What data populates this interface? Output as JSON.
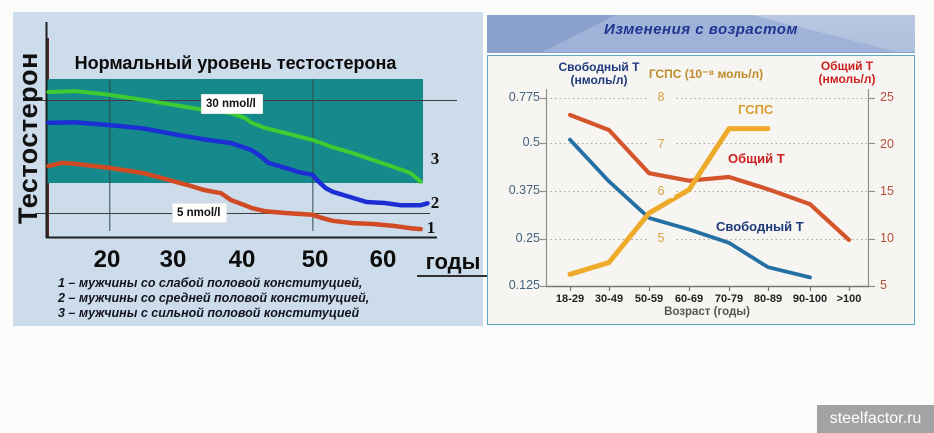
{
  "page": {
    "watermark": "steelfactor.ru"
  },
  "chart_data": [
    {
      "type": "line",
      "title": "Нормальный уровень тестостерона",
      "y_axis_label": "Тестостерон",
      "x_axis_label": "годы",
      "x_ticks": [
        "20",
        "30",
        "40",
        "50",
        "60"
      ],
      "xlim": [
        11,
        67
      ],
      "reference_lines": [
        {
          "label": "30 nmol/l",
          "value": 30
        },
        {
          "label": "5 nmol/l",
          "value": 5
        }
      ],
      "band": {
        "color": "#15898b",
        "from_nmol": 11.5,
        "to_nmol": 34
      },
      "grid_vertical_at_years": [
        20,
        50
      ],
      "series": [
        {
          "id": "strong",
          "end_label": "3",
          "color": "#3fcc33",
          "width": 4,
          "points": [
            [
              11,
              31.3
            ],
            [
              15,
              31.5
            ],
            [
              20,
              30.7
            ],
            [
              25,
              29.6
            ],
            [
              29.5,
              28.5
            ],
            [
              34,
              27.4
            ],
            [
              38,
              26.7
            ],
            [
              40,
              25.7
            ],
            [
              41,
              24.6
            ],
            [
              43,
              23.5
            ],
            [
              46,
              22.4
            ],
            [
              50,
              20.9
            ],
            [
              53,
              19.3
            ],
            [
              56,
              18.0
            ],
            [
              59,
              16.5
            ],
            [
              62,
              15.0
            ],
            [
              64.5,
              13.7
            ],
            [
              66,
              11.8
            ]
          ]
        },
        {
          "id": "medium",
          "end_label": "2",
          "color": "#1b2fd4",
          "width": 4.5,
          "points": [
            [
              11,
              24.6
            ],
            [
              15,
              24.7
            ],
            [
              20,
              24.1
            ],
            [
              25,
              23.4
            ],
            [
              30,
              22.0
            ],
            [
              34.5,
              20.9
            ],
            [
              38,
              20.2
            ],
            [
              41,
              18.7
            ],
            [
              42.5,
              17.2
            ],
            [
              43.5,
              15.9
            ],
            [
              46,
              14.8
            ],
            [
              48,
              13.9
            ],
            [
              50,
              13.3
            ],
            [
              51,
              11.7
            ],
            [
              52,
              10.4
            ],
            [
              53,
              9.6
            ],
            [
              55.5,
              8.5
            ],
            [
              58,
              7.4
            ],
            [
              60.5,
              7.2
            ],
            [
              63,
              6.7
            ],
            [
              66,
              6.7
            ],
            [
              67,
              7.1
            ]
          ]
        },
        {
          "id": "weak",
          "end_label": "1",
          "color": "#d04a24",
          "width": 4.5,
          "points": [
            [
              11,
              15.2
            ],
            [
              13,
              15.9
            ],
            [
              15,
              15.7
            ],
            [
              20,
              14.8
            ],
            [
              25,
              13.7
            ],
            [
              30,
              11.7
            ],
            [
              31.5,
              11.1
            ],
            [
              34,
              10.0
            ],
            [
              36.5,
              9.3
            ],
            [
              38,
              7.8
            ],
            [
              40,
              6.7
            ],
            [
              41,
              6.1
            ],
            [
              43,
              5.4
            ],
            [
              46,
              5.0
            ],
            [
              50,
              4.6
            ],
            [
              51.5,
              3.9
            ],
            [
              53,
              3.3
            ],
            [
              56,
              2.8
            ],
            [
              59,
              2.6
            ],
            [
              62,
              2.2
            ],
            [
              64.5,
              1.7
            ],
            [
              66,
              1.5
            ]
          ]
        }
      ],
      "end_labels": [
        "3",
        "2",
        "1"
      ],
      "legend": [
        "1 – мужчины со слабой половой конституцией,",
        "2 – мужчины со средней половой конституцией,",
        "3 – мужчины с сильной половой конституцией"
      ]
    },
    {
      "type": "line",
      "title": "Изменения с возрастом",
      "x_axis_label": "Возраст (годы)",
      "categories": [
        "18-29",
        "30-49",
        "50-59",
        "60-69",
        "70-79",
        "80-89",
        "90-100",
        ">100"
      ],
      "axes": {
        "left": {
          "title": "Свободный Т",
          "unit": "(нмоль/л)",
          "ticks": [
            {
              "label": "0.775",
              "v": 0.775
            },
            {
              "label": "0.5",
              "v": 0.5
            },
            {
              "label": "0.375",
              "v": 0.375
            },
            {
              "label": "0.25",
              "v": 0.25
            },
            {
              "label": "0.125",
              "v": 0.125
            }
          ]
        },
        "mid": {
          "title": "ГСПС (10⁻⁸ моль/л)",
          "unit": "",
          "ticks": [
            {
              "label": "8",
              "v": 8
            },
            {
              "label": "7",
              "v": 7
            },
            {
              "label": "6",
              "v": 6
            },
            {
              "label": "5",
              "v": 5
            }
          ]
        },
        "right": {
          "title": "Общий Т",
          "unit": "(нмоль/л)",
          "ticks": [
            {
              "label": "25",
              "v": 25
            },
            {
              "label": "20",
              "v": 20
            },
            {
              "label": "15",
              "v": 15
            },
            {
              "label": "10",
              "v": 10
            },
            {
              "label": "5",
              "v": 5
            }
          ]
        }
      },
      "series": [
        {
          "name": "Свободный Т",
          "axis": "left",
          "color": "#2470a4",
          "width": 3.8,
          "values": [
            0.52,
            0.4,
            0.305,
            0.275,
            0.24,
            0.175,
            0.148,
            null
          ]
        },
        {
          "name": "Общий Т",
          "axis": "right",
          "color": "#d4552b",
          "width": 4.2,
          "values": [
            23.2,
            21.6,
            17.0,
            16.2,
            16.6,
            15.3,
            13.7,
            9.9
          ]
        },
        {
          "name": "ГСПС",
          "axis": "mid",
          "color": "#eeab2b",
          "width": 5,
          "values": [
            4.25,
            4.5,
            5.55,
            6.05,
            7.35,
            7.35,
            null,
            null
          ]
        }
      ],
      "grid": "dotted-horizontal",
      "legend_position": "inline-annotations"
    }
  ]
}
